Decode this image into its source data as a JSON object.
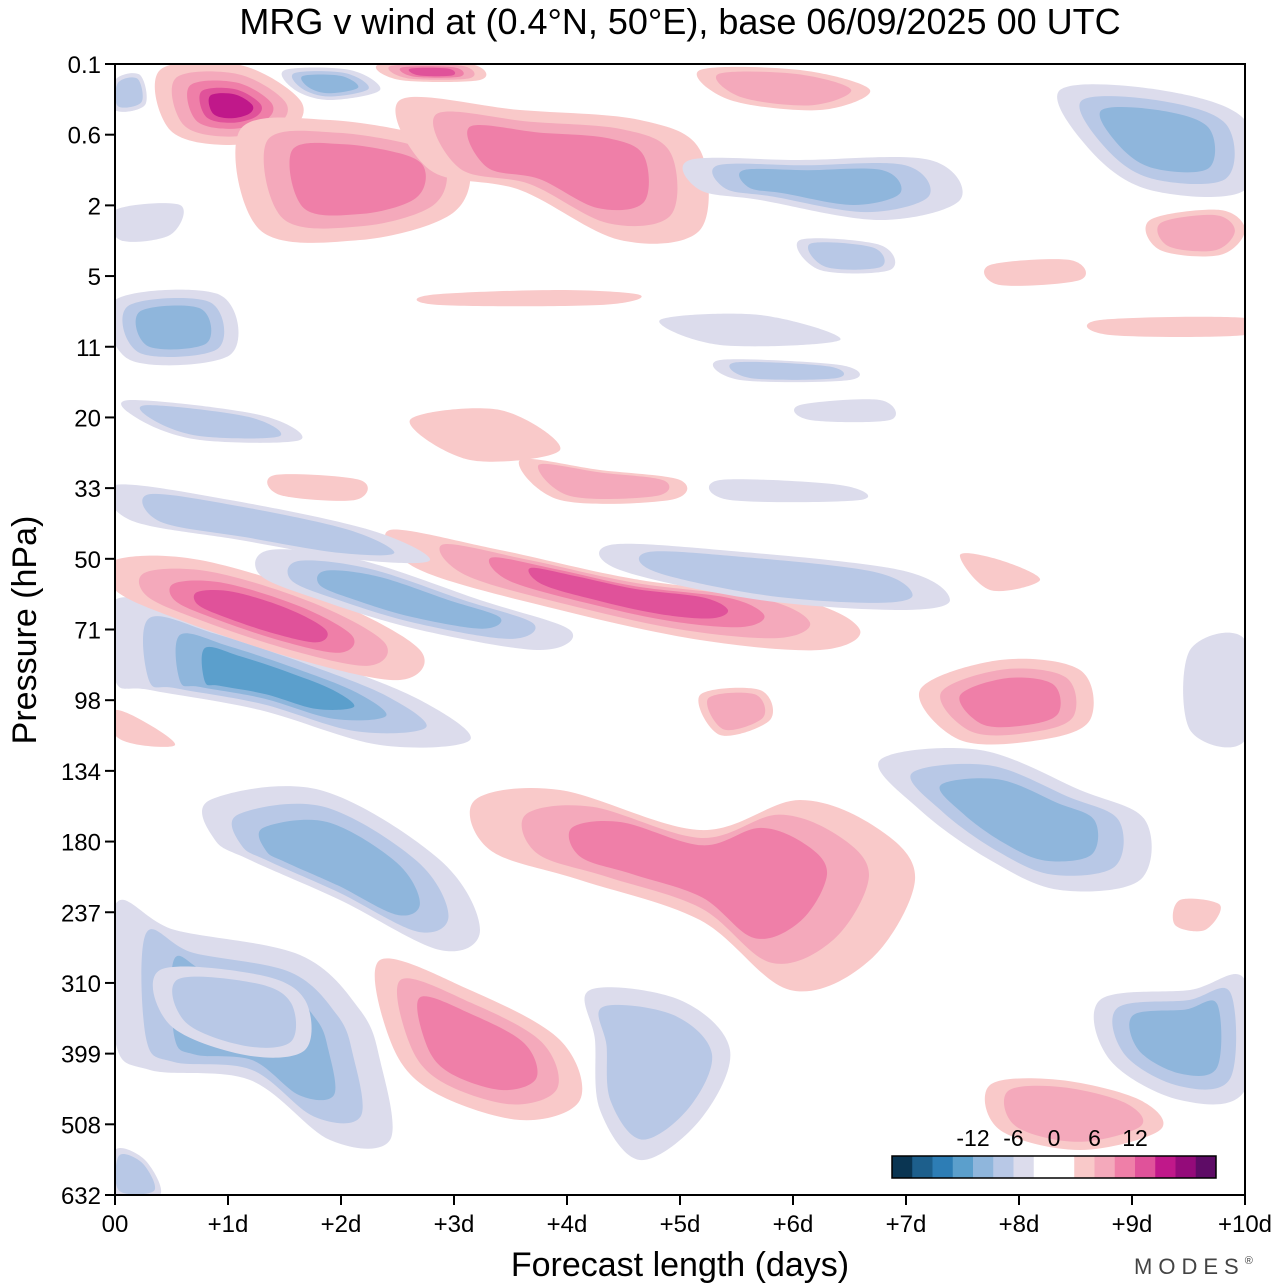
{
  "chart_data": {
    "type": "heatmap",
    "title": "MRG v wind at (0.4°N, 50°E),  base 06/09/2025  00 UTC",
    "xlabel": "Forecast length (days)",
    "ylabel": "Pressure (hPa)",
    "x_ticks": [
      "00",
      "+1d",
      "+2d",
      "+3d",
      "+4d",
      "+5d",
      "+6d",
      "+7d",
      "+8d",
      "+9d",
      "+10d"
    ],
    "y_ticks": [
      "0.1",
      "0.6",
      "2",
      "5",
      "11",
      "20",
      "33",
      "50",
      "71",
      "98",
      "134",
      "180",
      "237",
      "310",
      "399",
      "508",
      "632"
    ],
    "xlim_days": [
      0,
      10
    ],
    "colorbar": {
      "ticks": [
        "-12",
        "-6",
        "0",
        "6",
        "12"
      ],
      "levels": [
        -15,
        -12,
        -9,
        -6,
        -3,
        0,
        3,
        6,
        9,
        12,
        15
      ],
      "colors": [
        "#0a3552",
        "#1d5f8c",
        "#2d7db5",
        "#5b9fcc",
        "#8fb6dc",
        "#b8c8e6",
        "#dcdcec",
        "#ffffff",
        "#ffffff",
        "#f9c9c9",
        "#f4a9bb",
        "#ef7fa8",
        "#e0529a",
        "#c0188a",
        "#940b7a",
        "#5e0c66"
      ]
    },
    "features": [
      {
        "sign": "negative",
        "peak": -9,
        "day": 0.5,
        "pressure_hPa": 80
      },
      {
        "sign": "positive",
        "peak": 9,
        "day": 1.5,
        "pressure_hPa": 62
      },
      {
        "sign": "negative",
        "peak": -6,
        "day": 2.5,
        "pressure_hPa": 57
      },
      {
        "sign": "positive",
        "peak": 9,
        "day": 4.6,
        "pressure_hPa": 60
      },
      {
        "sign": "positive",
        "peak": 9,
        "day": 6.2,
        "pressure_hPa": 195
      },
      {
        "sign": "negative",
        "peak": -6,
        "day": 1.6,
        "pressure_hPa": 350
      },
      {
        "sign": "positive",
        "peak": 6,
        "day": 3.3,
        "pressure_hPa": 400
      },
      {
        "sign": "negative",
        "peak": -6,
        "day": 8.2,
        "pressure_hPa": 190
      },
      {
        "sign": "positive",
        "peak": 6,
        "day": 8.0,
        "pressure_hPa": 98
      },
      {
        "sign": "positive",
        "peak": 15,
        "day": 1.0,
        "pressure_hPa": 0.3
      },
      {
        "sign": "positive",
        "peak": 6,
        "day": 1.5,
        "pressure_hPa": 2.5
      },
      {
        "sign": "negative",
        "peak": -6,
        "day": 7.0,
        "pressure_hPa": 1.8
      },
      {
        "sign": "negative",
        "peak": -6,
        "day": 9.4,
        "pressure_hPa": 0.7
      },
      {
        "sign": "negative",
        "peak": -6,
        "day": 0.5,
        "pressure_hPa": 10
      }
    ]
  },
  "brand": "MODES",
  "brand_mark": "®"
}
